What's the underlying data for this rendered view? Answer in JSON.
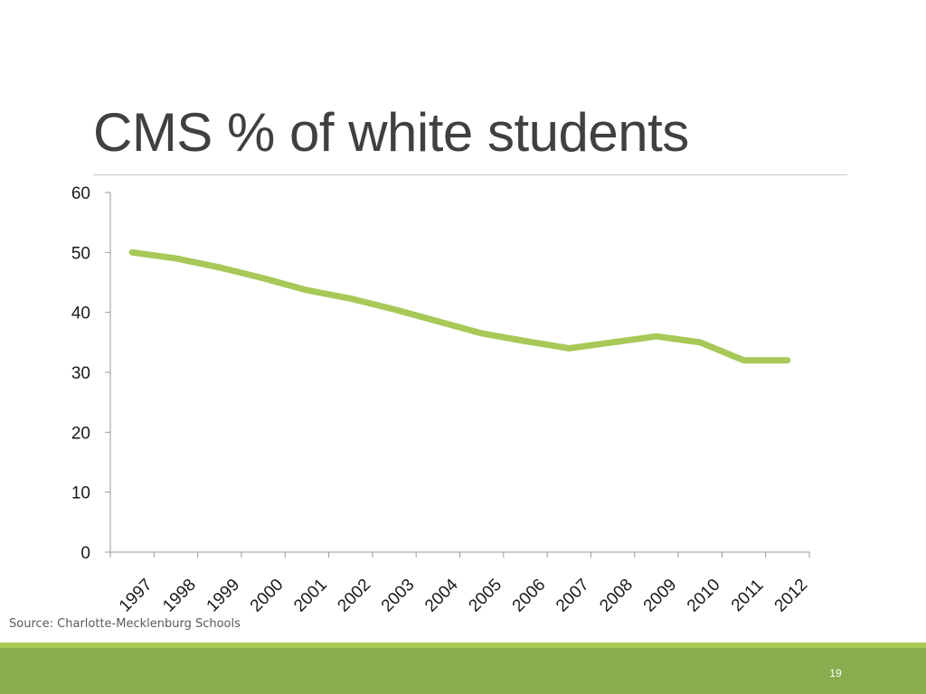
{
  "slide": {
    "title": "CMS % of white students",
    "source": "Source: Charlotte-Mecklenburg Schools",
    "page_number": "19"
  },
  "colors": {
    "line": "#a6c957",
    "footer": "#87ad4e",
    "footer_accent": "#a6c957",
    "title_text": "#404040"
  },
  "chart_data": {
    "type": "line",
    "title": "",
    "xlabel": "",
    "ylabel": "",
    "categories": [
      "1997",
      "1998",
      "1999",
      "2000",
      "2001",
      "2002",
      "2003",
      "2004",
      "2005",
      "2006",
      "2007",
      "2008",
      "2009",
      "2010",
      "2011",
      "2012"
    ],
    "series": [
      {
        "values": [
          50,
          49,
          47.5,
          45.7,
          43.7,
          42.3,
          40.5,
          38.5,
          36.5,
          35.2,
          34,
          35,
          36,
          35,
          32,
          32
        ]
      }
    ],
    "y_ticks": [
      "0",
      "10",
      "20",
      "30",
      "40",
      "50",
      "60"
    ],
    "ylim": [
      0,
      60
    ],
    "grid": false,
    "legend": "none"
  }
}
